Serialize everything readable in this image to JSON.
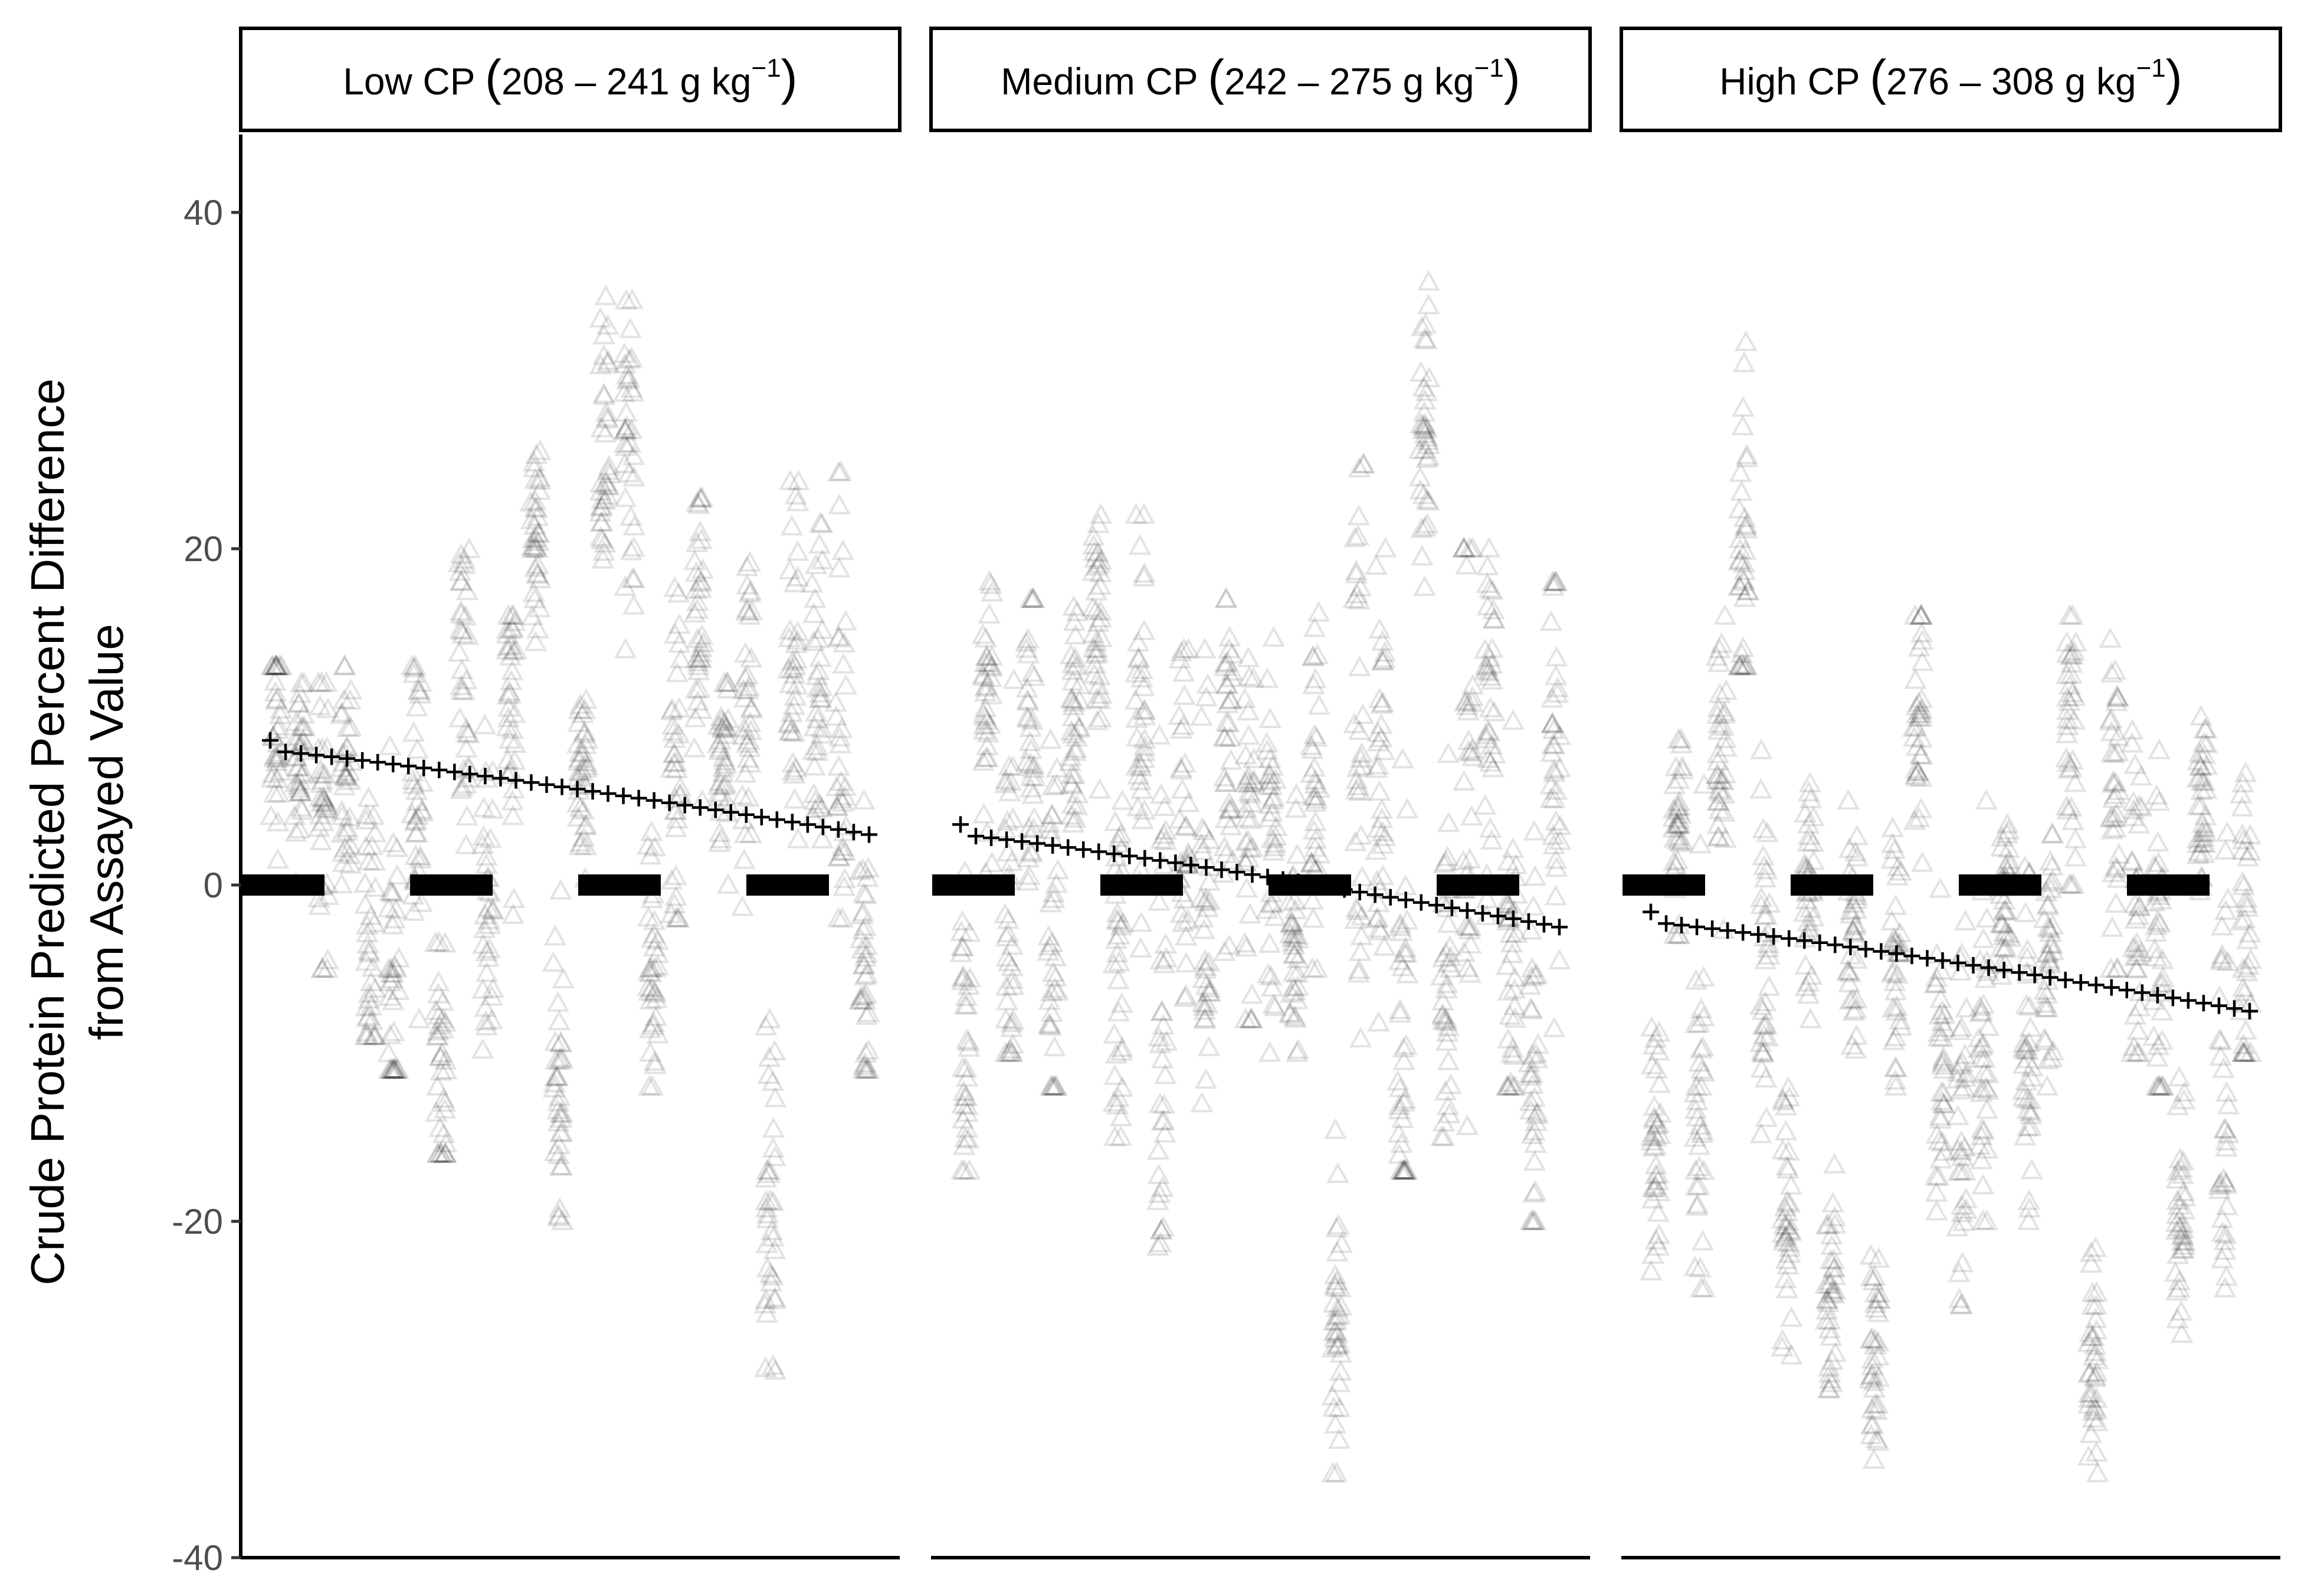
{
  "chart_data": {
    "type": "scatter",
    "ylabel_lines": [
      "Crude Protein Predicted Percent Difference",
      "from Assayed Value"
    ],
    "xlabel": "",
    "ylim": [
      -40,
      45
    ],
    "y_ticks": [
      40,
      20,
      0,
      -20,
      -40
    ],
    "y_tick_labels": [
      "40",
      "20",
      "0",
      "-20",
      "-40"
    ],
    "grid": false,
    "legend": "none",
    "marker": "open-triangle",
    "trend_marker": "plus",
    "reference_marker": "thick dashed segment at y = 0",
    "colors": {
      "points": "#000000",
      "strip_border": "#000000",
      "tick_text": "#4d4d4d"
    },
    "panels": [
      {
        "strip": {
          "prefix": "Low CP ",
          "range": "208 – 241 g kg",
          "sup": "−1"
        },
        "groups": [
          {
            "center": 10,
            "lo": -2,
            "hi": 13
          },
          {
            "center": 7,
            "lo": 0,
            "hi": 12
          },
          {
            "center": 5,
            "lo": -5,
            "hi": 12
          },
          {
            "center": 6,
            "lo": -3,
            "hi": 13
          },
          {
            "center": -3,
            "lo": -9,
            "hi": 13
          },
          {
            "center": -5,
            "lo": -11,
            "hi": 13
          },
          {
            "center": 6,
            "lo": -8,
            "hi": 13
          },
          {
            "center": -9,
            "lo": -16,
            "hi": 10
          },
          {
            "center": 12,
            "lo": 0,
            "hi": 21
          },
          {
            "center": 0,
            "lo": -10,
            "hi": 14
          },
          {
            "center": 10,
            "lo": -3,
            "hi": 16
          },
          {
            "center": 20,
            "lo": 13,
            "hi": 28
          },
          {
            "center": -12,
            "lo": -20,
            "hi": 0
          },
          {
            "center": 6,
            "lo": 0,
            "hi": 11
          },
          {
            "center": 27,
            "lo": 16,
            "hi": 35
          },
          {
            "center": 25,
            "lo": 14,
            "hi": 40
          },
          {
            "center": -5,
            "lo": -12,
            "hi": 6
          },
          {
            "center": 7,
            "lo": -2,
            "hi": 24
          },
          {
            "center": 16,
            "lo": 5,
            "hi": 23
          },
          {
            "center": 7,
            "lo": 0,
            "hi": 12
          },
          {
            "center": 10,
            "lo": -3,
            "hi": 20
          },
          {
            "center": -18,
            "lo": -32,
            "hi": -8
          },
          {
            "center": 14,
            "lo": 0,
            "hi": 24
          },
          {
            "center": 12,
            "lo": 0,
            "hi": 22
          },
          {
            "center": 8,
            "lo": -2,
            "hi": 28
          },
          {
            "center": -5,
            "lo": -11,
            "hi": 5
          }
        ],
        "trend": {
          "y_start": 8.0,
          "y_end": 3.0
        },
        "zero_segments": 4
      },
      {
        "strip": {
          "prefix": "Medium CP ",
          "range": "242 – 275 g kg",
          "sup": "−1"
        },
        "groups": [
          {
            "center": -7,
            "lo": -17,
            "hi": 2
          },
          {
            "center": 10,
            "lo": 0,
            "hi": 19
          },
          {
            "center": -2,
            "lo": -10,
            "hi": 19
          },
          {
            "center": 8,
            "lo": -3,
            "hi": 17
          },
          {
            "center": -4,
            "lo": -12,
            "hi": 15
          },
          {
            "center": 10,
            "lo": 0,
            "hi": 17
          },
          {
            "center": 14,
            "lo": 5,
            "hi": 22
          },
          {
            "center": -5,
            "lo": -15,
            "hi": 10
          },
          {
            "center": 8,
            "lo": -5,
            "hi": 22
          },
          {
            "center": -12,
            "lo": -30,
            "hi": 12
          },
          {
            "center": 3,
            "lo": -8,
            "hi": 14
          },
          {
            "center": -2,
            "lo": -13,
            "hi": 14
          },
          {
            "center": 8,
            "lo": -4,
            "hi": 17
          },
          {
            "center": 5,
            "lo": -8,
            "hi": 17
          },
          {
            "center": 2,
            "lo": -10,
            "hi": 15
          },
          {
            "center": -5,
            "lo": -10,
            "hi": 12
          },
          {
            "center": 5,
            "lo": -5,
            "hi": 18
          },
          {
            "center": -25,
            "lo": -35,
            "hi": -8
          },
          {
            "center": 8,
            "lo": -12,
            "hi": 25
          },
          {
            "center": 5,
            "lo": -15,
            "hi": 20
          },
          {
            "center": -12,
            "lo": -17,
            "hi": 18
          },
          {
            "center": 27,
            "lo": 17,
            "hi": 40
          },
          {
            "center": -5,
            "lo": -15,
            "hi": 10
          },
          {
            "center": 5,
            "lo": -25,
            "hi": 20
          },
          {
            "center": 10,
            "lo": -5,
            "hi": 20
          },
          {
            "center": -5,
            "lo": -12,
            "hi": 18
          },
          {
            "center": -12,
            "lo": -20,
            "hi": 12
          },
          {
            "center": 8,
            "lo": -15,
            "hi": 18
          }
        ],
        "trend": {
          "y_start": 3.0,
          "y_end": -2.5
        },
        "zero_segments": 4
      },
      {
        "strip": {
          "prefix": "High CP ",
          "range": "276 – 308 g kg",
          "sup": "−1"
        },
        "groups": [
          {
            "center": -15,
            "lo": -23,
            "hi": -5
          },
          {
            "center": 3,
            "lo": -3,
            "hi": 10
          },
          {
            "center": -15,
            "lo": -24,
            "hi": 8
          },
          {
            "center": 8,
            "lo": -5,
            "hi": 16
          },
          {
            "center": 21,
            "lo": 13,
            "hi": 39
          },
          {
            "center": -5,
            "lo": -15,
            "hi": 8
          },
          {
            "center": -20,
            "lo": -28,
            "hi": -10
          },
          {
            "center": 0,
            "lo": -8,
            "hi": 8
          },
          {
            "center": -25,
            "lo": -30,
            "hi": -15
          },
          {
            "center": -3,
            "lo": -10,
            "hi": 5
          },
          {
            "center": -28,
            "lo": -36,
            "hi": -20
          },
          {
            "center": -5,
            "lo": -12,
            "hi": 5
          },
          {
            "center": 10,
            "lo": 0,
            "hi": 16
          },
          {
            "center": -10,
            "lo": -20,
            "hi": 0
          },
          {
            "center": -15,
            "lo": -25,
            "hi": 3
          },
          {
            "center": -10,
            "lo": -20,
            "hi": 5
          },
          {
            "center": 0,
            "lo": -8,
            "hi": 5
          },
          {
            "center": -10,
            "lo": -20,
            "hi": 2
          },
          {
            "center": -5,
            "lo": -12,
            "hi": 3
          },
          {
            "center": 10,
            "lo": 0,
            "hi": 16
          },
          {
            "center": -28,
            "lo": -35,
            "hi": -20
          },
          {
            "center": 5,
            "lo": -5,
            "hi": 15
          },
          {
            "center": 0,
            "lo": -10,
            "hi": 15
          },
          {
            "center": -5,
            "lo": -12,
            "hi": 8
          },
          {
            "center": -20,
            "lo": -27,
            "hi": -10
          },
          {
            "center": 5,
            "lo": -3,
            "hi": 10
          },
          {
            "center": -15,
            "lo": -24,
            "hi": 8
          },
          {
            "center": -5,
            "lo": -10,
            "hi": 13
          }
        ],
        "trend": {
          "y_start": -2.2,
          "y_end": -7.5
        },
        "zero_segments": 4
      }
    ]
  }
}
